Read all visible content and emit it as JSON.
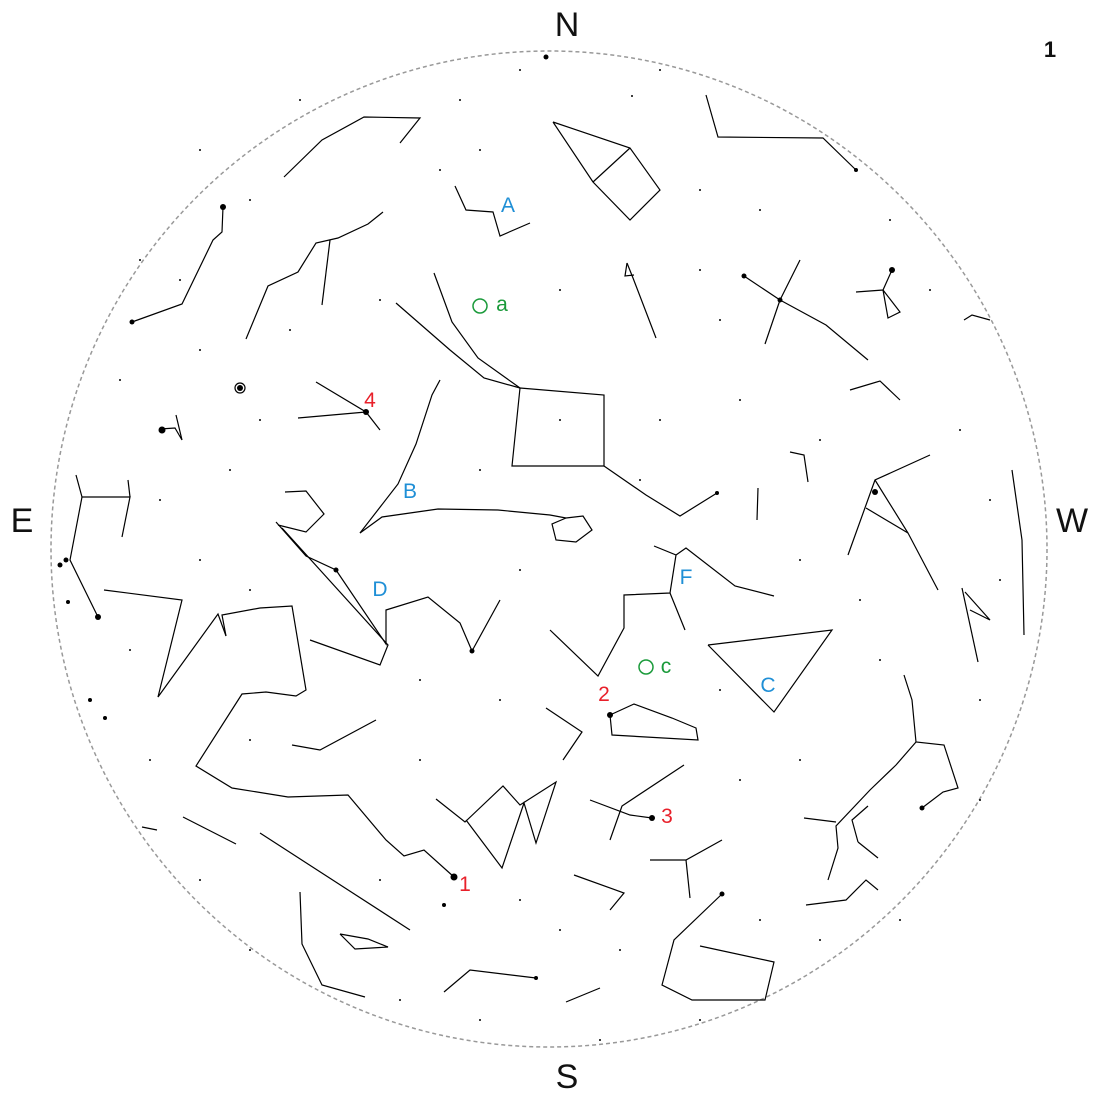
{
  "page_number": "1",
  "directions": {
    "north": "N",
    "south": "S",
    "east": "E",
    "west": "W"
  },
  "colors": {
    "constellation_label": "#1f8fd6",
    "star_label": "#e8202a",
    "object_label": "#1a9a3a",
    "horizon": "#999999",
    "lines": "#000000"
  },
  "constellation_labels": [
    "A",
    "B",
    "C",
    "D",
    "F"
  ],
  "star_labels": [
    "1",
    "2",
    "3",
    "4"
  ],
  "object_labels": [
    "a",
    "c"
  ]
}
